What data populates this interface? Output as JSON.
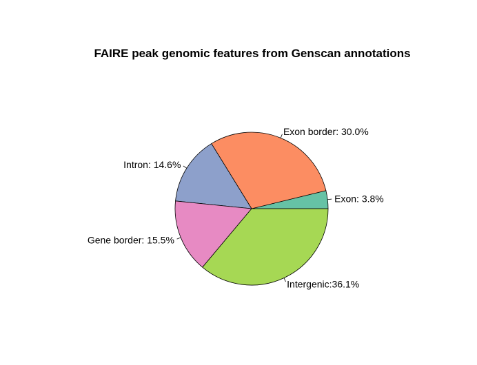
{
  "chart_data": {
    "type": "pie",
    "title": "FAIRE peak genomic features from Genscan annotations",
    "slices": [
      {
        "label": "Exon: 3.8%",
        "value": 3.8,
        "color": "#66C2A5"
      },
      {
        "label": "Exon border: 30.0%",
        "value": 30.0,
        "color": "#FC8D62"
      },
      {
        "label": "Intron: 14.6%",
        "value": 14.6,
        "color": "#8DA0CB"
      },
      {
        "label": "Gene border: 15.5%",
        "value": 15.5,
        "color": "#E78AC3"
      },
      {
        "label": "Intergenic:36.1%",
        "value": 36.1,
        "color": "#A6D854"
      }
    ],
    "start_angle": "3 o'clock",
    "direction": "counterclockwise"
  }
}
